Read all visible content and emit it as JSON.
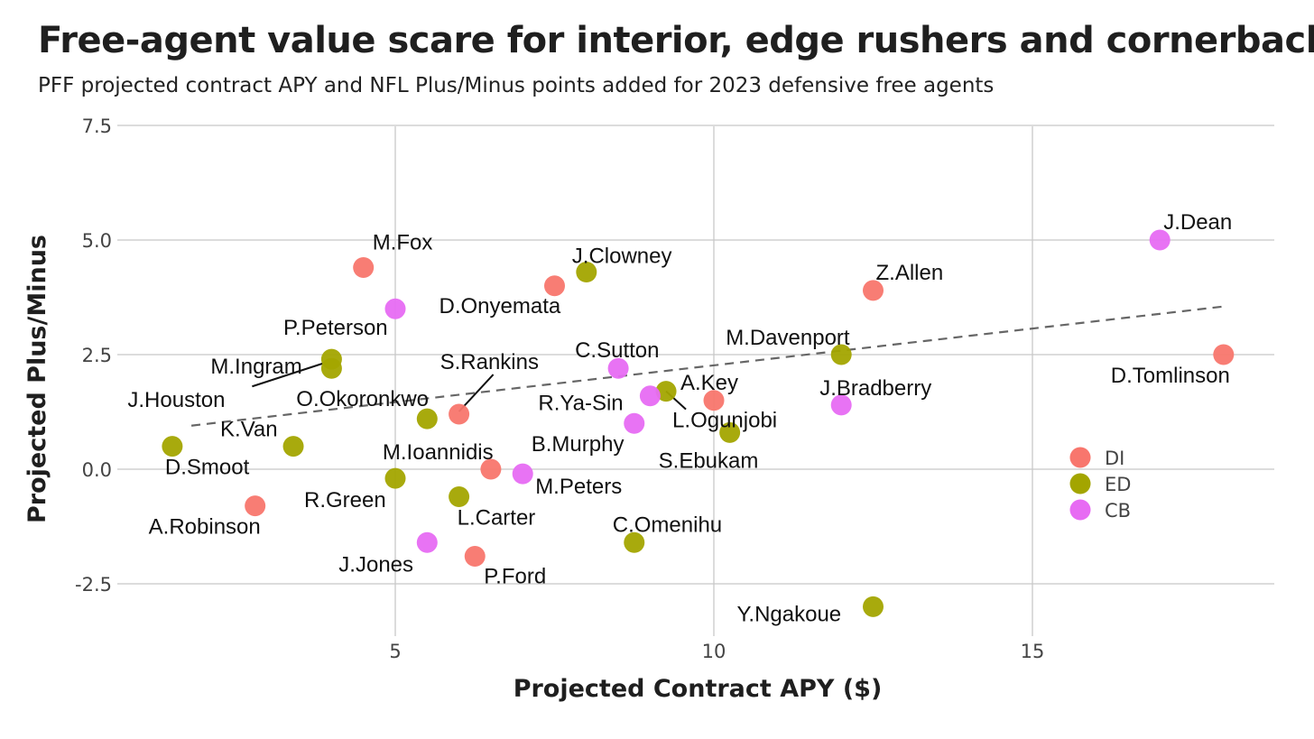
{
  "title": "Free-agent value scare for interior, edge rushers and cornerbacks",
  "subtitle": "PFF projected contract APY and NFL Plus/Minus points added for 2023 defensive free agents",
  "chart_data": {
    "type": "scatter",
    "xlabel": "Projected Contract APY ($)",
    "ylabel": "Projected Plus/Minus",
    "xlim": [
      0.5,
      19
    ],
    "ylim": [
      -3.5,
      7.5
    ],
    "x_ticks": [
      5,
      10,
      15
    ],
    "y_ticks": [
      -2.5,
      0.0,
      2.5,
      5.0,
      7.5
    ],
    "x_tick_labels": [
      "5",
      "10",
      "15"
    ],
    "y_tick_labels": [
      "-2.5",
      "0.0",
      "2.5",
      "5.0",
      "7.5"
    ],
    "grid": true,
    "legend_position": "right",
    "colors": {
      "DI": "#f8766d",
      "ED": "#a3a500",
      "CB": "#e76bf3"
    },
    "legend": [
      {
        "key": "DI",
        "label": "DI"
      },
      {
        "key": "ED",
        "label": "ED"
      },
      {
        "key": "CB",
        "label": "CB"
      }
    ],
    "trendline": {
      "style": "dashed",
      "color": "#666666",
      "from": [
        1.8,
        0.95
      ],
      "to": [
        18,
        3.55
      ]
    },
    "points": [
      {
        "name": "M.Fox",
        "group": "DI",
        "x": 4.5,
        "y": 4.4
      },
      {
        "name": "D.Onyemata",
        "group": "DI",
        "x": 7.5,
        "y": 4.0
      },
      {
        "name": "Z.Allen",
        "group": "DI",
        "x": 12.5,
        "y": 3.9
      },
      {
        "name": "D.Tomlinson",
        "group": "DI",
        "x": 18.0,
        "y": 2.5
      },
      {
        "name": "A.Key",
        "group": "DI",
        "x": 10.0,
        "y": 1.5
      },
      {
        "name": "S.Rankins",
        "group": "DI",
        "x": 6.0,
        "y": 1.2
      },
      {
        "name": "M.Ioannidis",
        "group": "DI",
        "x": 6.5,
        "y": 0.0
      },
      {
        "name": "A.Robinson",
        "group": "DI",
        "x": 2.8,
        "y": -0.8
      },
      {
        "name": "P.Ford",
        "group": "DI",
        "x": 6.25,
        "y": -1.9
      },
      {
        "name": "J.Clowney",
        "group": "ED",
        "x": 8.0,
        "y": 4.3
      },
      {
        "name": "M.Davenport",
        "group": "ED",
        "x": 12.0,
        "y": 2.5
      },
      {
        "name": "M.Ingram",
        "group": "ED",
        "x": 4.0,
        "y": 2.4
      },
      {
        "name": "J.Houston",
        "group": "ED",
        "x": 4.0,
        "y": 2.2
      },
      {
        "name": "L.Ogunjobi",
        "group": "ED",
        "x": 9.25,
        "y": 1.7
      },
      {
        "name": "O.Okoronkwo",
        "group": "ED",
        "x": 5.5,
        "y": 1.1
      },
      {
        "name": "S.Ebukam",
        "group": "ED",
        "x": 10.25,
        "y": 0.8
      },
      {
        "name": "D.Smoot",
        "group": "ED",
        "x": 1.5,
        "y": 0.5
      },
      {
        "name": "K.Van",
        "group": "ED",
        "x": 3.4,
        "y": 0.5
      },
      {
        "name": "R.Green",
        "group": "ED",
        "x": 5.0,
        "y": -0.2
      },
      {
        "name": "L.Carter",
        "group": "ED",
        "x": 6.0,
        "y": -0.6
      },
      {
        "name": "C.Omenihu",
        "group": "ED",
        "x": 8.75,
        "y": -1.6
      },
      {
        "name": "Y.Ngakoue",
        "group": "ED",
        "x": 12.5,
        "y": -3.0
      },
      {
        "name": "J.Dean",
        "group": "CB",
        "x": 17.0,
        "y": 5.0
      },
      {
        "name": "P.Peterson",
        "group": "CB",
        "x": 5.0,
        "y": 3.5
      },
      {
        "name": "C.Sutton",
        "group": "CB",
        "x": 8.5,
        "y": 2.2
      },
      {
        "name": "R.Ya-Sin",
        "group": "CB",
        "x": 9.0,
        "y": 1.6
      },
      {
        "name": "J.Bradberry",
        "group": "CB",
        "x": 12.0,
        "y": 1.4
      },
      {
        "name": "B.Murphy",
        "group": "CB",
        "x": 8.75,
        "y": 1.0
      },
      {
        "name": "M.Peters",
        "group": "CB",
        "x": 7.0,
        "y": -0.1
      },
      {
        "name": "J.Jones",
        "group": "CB",
        "x": 5.5,
        "y": -1.6
      }
    ]
  }
}
